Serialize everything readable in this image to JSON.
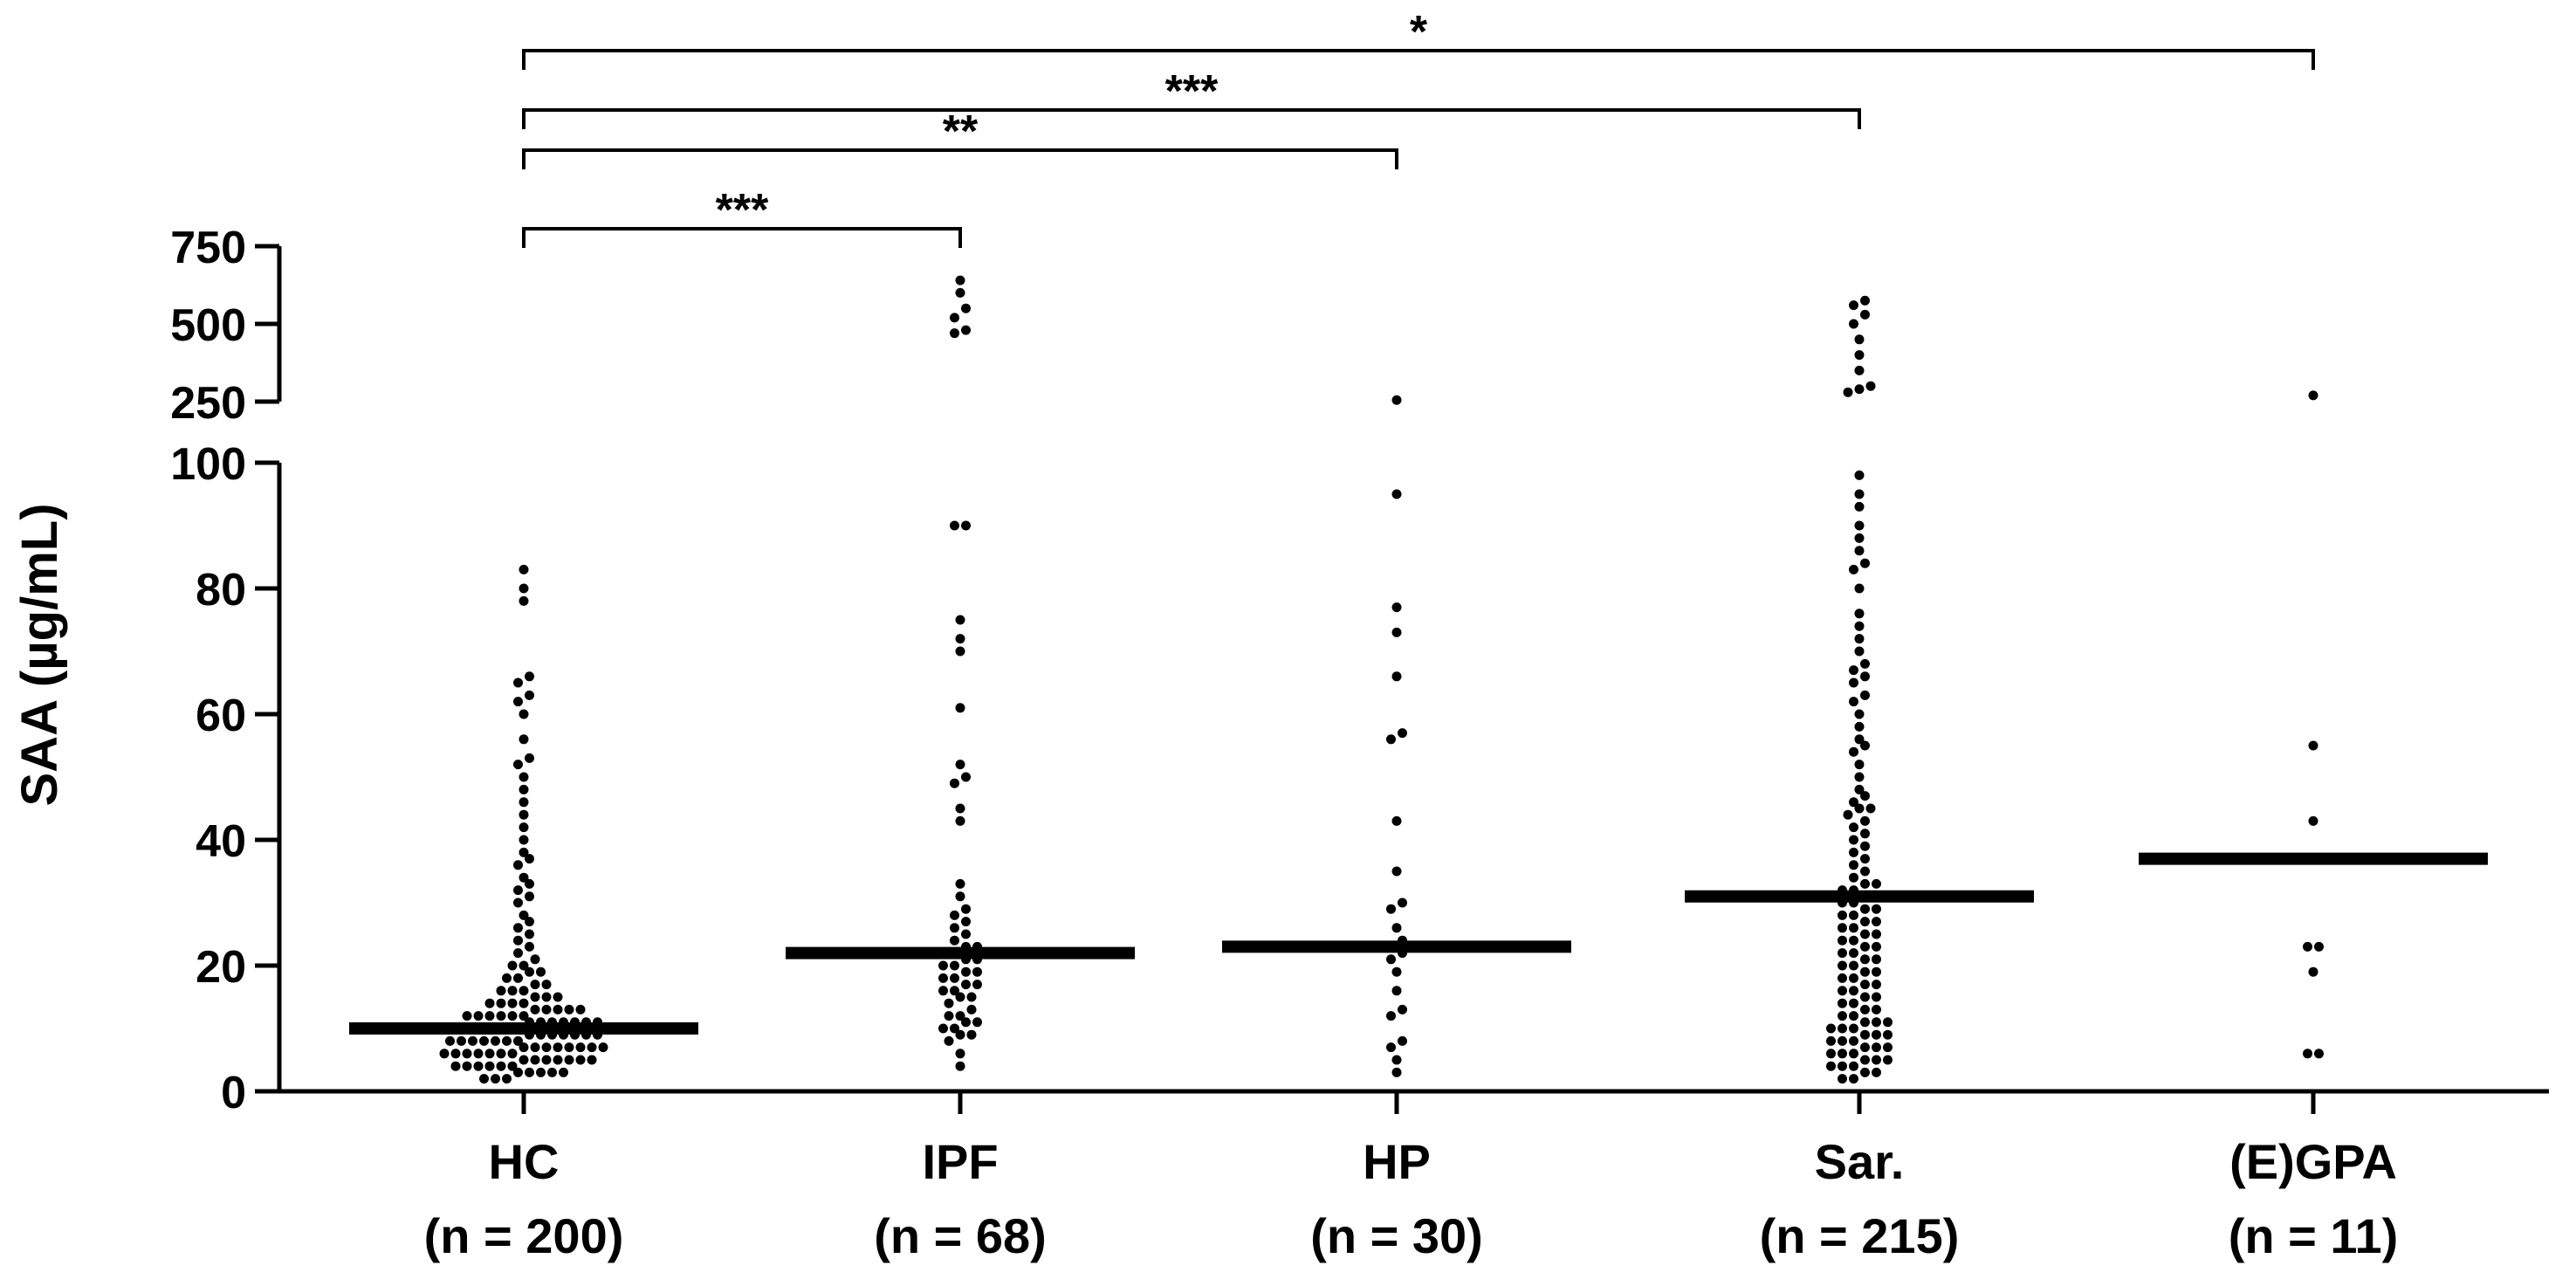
{
  "chart_data": {
    "type": "scatter",
    "ylabel": "SAA (µg/mL)",
    "xlabel": "",
    "y_axis": {
      "lower_segment": {
        "range": [
          0,
          100
        ],
        "ticks": [
          "0",
          "20",
          "40",
          "60",
          "80",
          "100"
        ]
      },
      "upper_segment": {
        "range": [
          250,
          750
        ],
        "ticks": [
          "250",
          "500",
          "750"
        ]
      },
      "broken": true
    },
    "categories": [
      {
        "name": "HC",
        "n_label": "(n = 200)",
        "median": 10,
        "values": [
          2,
          2,
          2,
          3,
          3,
          3,
          3,
          3,
          4,
          4,
          4,
          4,
          4,
          4,
          5,
          5,
          5,
          5,
          5,
          5,
          5,
          6,
          6,
          6,
          6,
          6,
          6,
          6,
          7,
          7,
          7,
          7,
          7,
          7,
          7,
          7,
          8,
          8,
          8,
          8,
          8,
          8,
          8,
          9,
          9,
          9,
          9,
          9,
          9,
          9,
          10,
          10,
          10,
          10,
          10,
          10,
          10,
          11,
          11,
          11,
          11,
          11,
          11,
          11,
          12,
          12,
          12,
          12,
          12,
          12,
          13,
          13,
          13,
          13,
          13,
          14,
          14,
          14,
          14,
          15,
          15,
          15,
          16,
          16,
          16,
          17,
          17,
          18,
          18,
          19,
          19,
          20,
          20,
          21,
          22,
          23,
          24,
          25,
          26,
          27,
          28,
          30,
          31,
          32,
          33,
          34,
          36,
          37,
          38,
          40,
          42,
          44,
          46,
          48,
          50,
          52,
          53,
          56,
          60,
          62,
          63,
          65,
          66,
          78,
          80,
          83
        ]
      },
      {
        "name": "IPF",
        "n_label": "(n = 68)",
        "median": 22,
        "values": [
          4,
          6,
          8,
          9,
          9,
          10,
          10,
          11,
          11,
          12,
          12,
          13,
          14,
          15,
          15,
          16,
          16,
          17,
          17,
          18,
          18,
          19,
          19,
          20,
          20,
          21,
          21,
          22,
          22,
          23,
          23,
          24,
          25,
          26,
          27,
          28,
          29,
          31,
          33,
          43,
          45,
          49,
          50,
          52,
          61,
          70,
          72,
          75,
          90,
          90,
          470,
          480,
          520,
          550,
          600,
          640
        ]
      },
      {
        "name": "HP",
        "n_label": "(n = 30)",
        "median": 23,
        "values": [
          3,
          5,
          7,
          8,
          12,
          13,
          16,
          19,
          21,
          22,
          23,
          24,
          26,
          29,
          30,
          35,
          43,
          56,
          57,
          66,
          73,
          77,
          95,
          255
        ]
      },
      {
        "name": "Sar.",
        "n_label": "(n = 215)",
        "median": 31,
        "values": [
          2,
          2,
          3,
          3,
          4,
          4,
          4,
          5,
          5,
          5,
          6,
          6,
          6,
          7,
          7,
          7,
          8,
          8,
          8,
          9,
          9,
          9,
          10,
          10,
          10,
          11,
          11,
          11,
          12,
          12,
          13,
          13,
          14,
          14,
          15,
          15,
          16,
          16,
          17,
          17,
          18,
          18,
          19,
          19,
          20,
          20,
          21,
          21,
          22,
          22,
          23,
          23,
          24,
          24,
          25,
          25,
          26,
          26,
          27,
          27,
          28,
          28,
          29,
          29,
          30,
          30,
          31,
          31,
          32,
          32,
          33,
          33,
          34,
          35,
          36,
          37,
          38,
          39,
          40,
          41,
          42,
          43,
          44,
          45,
          45,
          46,
          47,
          48,
          50,
          52,
          54,
          55,
          56,
          58,
          60,
          62,
          63,
          65,
          66,
          67,
          68,
          70,
          72,
          74,
          76,
          80,
          83,
          84,
          86,
          88,
          90,
          93,
          95,
          98,
          280,
          290,
          300,
          350,
          400,
          450,
          500,
          530,
          560,
          575
        ]
      },
      {
        "name": "(E)GPA",
        "n_label": "(n = 11)",
        "median": 37,
        "values": [
          6,
          6,
          19,
          23,
          23,
          43,
          55,
          270
        ]
      }
    ],
    "comparisons": [
      {
        "from": "HC",
        "to": "IPF",
        "label": "***"
      },
      {
        "from": "HC",
        "to": "HP",
        "label": "**"
      },
      {
        "from": "HC",
        "to": "Sar.",
        "label": "***"
      },
      {
        "from": "HC",
        "to": "(E)GPA",
        "label": "*"
      }
    ]
  }
}
